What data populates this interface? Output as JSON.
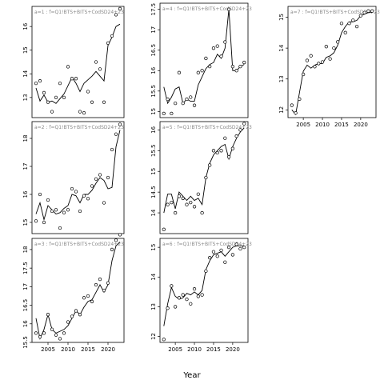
{
  "chart_data": {
    "type": "scatter",
    "xlabel": "Year",
    "panels": [
      {
        "label": "a=1  :  f=Q1!BTS+BITS+CodSD24+23",
        "xlim": [
          2001,
          2024
        ],
        "ylim": [
          12.15,
          16.85
        ],
        "yticks": [
          13,
          14,
          15,
          16
        ],
        "xticks": [],
        "x": [
          2002,
          2003,
          2004,
          2005,
          2006,
          2007,
          2008,
          2009,
          2010,
          2011,
          2012,
          2013,
          2014,
          2015,
          2016,
          2017,
          2018,
          2019,
          2020,
          2021,
          2022,
          2023
        ],
        "observed": [
          13.6,
          13.7,
          13.2,
          12.8,
          12.4,
          13.0,
          13.6,
          13.0,
          14.3,
          13.8,
          13.8,
          12.4,
          12.35,
          13.25,
          12.8,
          14.5,
          14.2,
          12.8,
          15.3,
          15.6,
          16.5,
          16.75
        ],
        "fitted": [
          13.4,
          12.85,
          13.1,
          12.8,
          12.85,
          12.75,
          12.95,
          13.15,
          13.5,
          13.85,
          13.6,
          13.25,
          13.6,
          13.75,
          13.9,
          14.1,
          13.9,
          13.7,
          15.2,
          15.55,
          16.0,
          16.1
        ]
      },
      {
        "label": "a=2  :  f=Q1!BTS+BITS+CodSD24+23",
        "xlim": [
          2001,
          2024
        ],
        "ylim": [
          14.6,
          18.6
        ],
        "yticks": [
          15,
          16,
          17,
          18
        ],
        "xticks": [],
        "x": [
          2002,
          2003,
          2004,
          2005,
          2006,
          2007,
          2008,
          2009,
          2010,
          2011,
          2012,
          2013,
          2014,
          2015,
          2016,
          2017,
          2018,
          2019,
          2020,
          2021,
          2022,
          2023
        ],
        "observed": [
          15.05,
          16.0,
          15.0,
          15.8,
          15.4,
          15.45,
          14.8,
          15.35,
          15.45,
          16.2,
          16.1,
          15.4,
          15.95,
          15.85,
          16.3,
          16.55,
          16.7,
          15.7,
          16.6,
          17.6,
          18.15,
          18.5
        ],
        "fitted": [
          15.3,
          15.7,
          15.1,
          15.6,
          15.45,
          15.3,
          15.35,
          15.5,
          15.6,
          16.0,
          15.95,
          15.7,
          16.0,
          16.0,
          16.15,
          16.4,
          16.6,
          16.5,
          16.2,
          16.25,
          17.7,
          18.3
        ]
      },
      {
        "label": "a=3  :  f=Q1!BTS+BITS+CodSD24+23",
        "xlim": [
          2001,
          2024
        ],
        "ylim": [
          15.5,
          18.3
        ],
        "yticks": [
          15.5,
          16.0,
          16.5,
          17.0,
          17.5,
          18.0
        ],
        "xticks": [
          2005,
          2010,
          2015,
          2020
        ],
        "x": [
          2002,
          2003,
          2004,
          2005,
          2006,
          2007,
          2008,
          2009,
          2010,
          2011,
          2012,
          2013,
          2014,
          2015,
          2016,
          2017,
          2018,
          2019,
          2020,
          2021,
          2022,
          2023
        ],
        "observed": [
          15.75,
          15.65,
          15.75,
          16.25,
          15.85,
          15.7,
          15.6,
          15.75,
          16.05,
          16.2,
          16.35,
          16.25,
          16.7,
          16.75,
          16.6,
          17.05,
          17.2,
          16.9,
          17.1,
          18.0,
          18.25,
          18.4
        ],
        "fitted": [
          16.15,
          15.6,
          15.85,
          16.25,
          15.85,
          15.75,
          15.8,
          15.85,
          15.95,
          16.15,
          16.35,
          16.25,
          16.45,
          16.6,
          16.65,
          16.85,
          17.05,
          16.85,
          17.05,
          17.7,
          18.1,
          18.2
        ]
      },
      {
        "label": "a=4  :  f=Q1!BTS+BITS+CodSD24+23",
        "xlim": [
          2001,
          2024
        ],
        "ylim": [
          14.85,
          17.65
        ],
        "yticks": [
          15.0,
          15.5,
          16.0,
          16.5,
          17.0,
          17.5
        ],
        "xticks": [],
        "x": [
          2002,
          2003,
          2004,
          2005,
          2006,
          2007,
          2008,
          2009,
          2010,
          2011,
          2012,
          2013,
          2014,
          2015,
          2016,
          2017,
          2018,
          2019,
          2020,
          2021,
          2022,
          2023
        ],
        "observed": [
          14.95,
          15.3,
          14.95,
          15.2,
          15.95,
          15.2,
          15.3,
          15.35,
          15.15,
          15.95,
          16.0,
          16.3,
          16.1,
          16.55,
          16.6,
          16.35,
          16.7,
          17.5,
          16.1,
          16.0,
          16.1,
          16.2
        ],
        "fitted": [
          15.6,
          15.2,
          15.35,
          15.55,
          15.6,
          15.2,
          15.3,
          15.25,
          15.25,
          15.65,
          15.85,
          16.05,
          16.15,
          16.2,
          16.4,
          16.3,
          16.55,
          17.5,
          16.0,
          16.0,
          16.1,
          16.15
        ]
      },
      {
        "label": "a=5  :  f=Q1!BTS+BITS+CodSD24+23",
        "xlim": [
          2001,
          2024
        ],
        "ylim": [
          13.5,
          16.2
        ],
        "yticks": [
          14.0,
          14.5,
          15.0,
          15.5,
          16.0
        ],
        "xticks": [],
        "x": [
          2002,
          2003,
          2004,
          2005,
          2006,
          2007,
          2008,
          2009,
          2010,
          2011,
          2012,
          2013,
          2014,
          2015,
          2016,
          2017,
          2018,
          2019,
          2020,
          2021,
          2022,
          2023
        ],
        "observed": [
          13.6,
          14.2,
          14.25,
          14.0,
          14.4,
          14.35,
          14.2,
          14.25,
          14.15,
          14.45,
          14.0,
          14.85,
          15.15,
          15.5,
          15.45,
          15.5,
          15.8,
          15.35,
          15.55,
          15.85,
          16.0,
          16.15
        ],
        "fitted": [
          14.0,
          14.45,
          14.45,
          14.1,
          14.5,
          14.4,
          14.3,
          14.4,
          14.3,
          14.35,
          14.2,
          14.85,
          15.2,
          15.4,
          15.5,
          15.6,
          15.65,
          15.3,
          15.6,
          15.8,
          15.95,
          16.05
        ]
      },
      {
        "label": "a=6  :  f=Q1!BTS+BITS+CodSD24+23",
        "xlim": [
          2001,
          2024
        ],
        "ylim": [
          11.8,
          15.3
        ],
        "yticks": [
          12.0,
          13.0,
          14.0,
          15.0
        ],
        "xticks": [
          2005,
          2010,
          2015,
          2020
        ],
        "x": [
          2002,
          2003,
          2004,
          2005,
          2006,
          2007,
          2008,
          2009,
          2010,
          2011,
          2012,
          2013,
          2014,
          2015,
          2016,
          2017,
          2018,
          2019,
          2020,
          2021,
          2022,
          2023
        ],
        "observed": [
          11.9,
          12.95,
          13.7,
          13.0,
          13.3,
          13.4,
          13.25,
          13.1,
          13.6,
          13.35,
          13.4,
          14.2,
          14.65,
          14.85,
          14.7,
          14.9,
          14.5,
          15.0,
          14.75,
          15.1,
          14.95,
          15.0
        ],
        "fitted": [
          12.35,
          13.1,
          13.65,
          13.35,
          13.25,
          13.3,
          13.45,
          13.4,
          13.5,
          13.4,
          13.55,
          14.25,
          14.55,
          14.75,
          14.8,
          14.85,
          14.7,
          14.85,
          15.0,
          15.05,
          15.05,
          15.05
        ]
      },
      {
        "label": "a=7  :  f=Q1!BTS+BITS+CodSD24+23",
        "xlim": [
          2001,
          2024
        ],
        "ylim": [
          11.75,
          15.35
        ],
        "yticks": [
          12.0,
          13.0,
          14.0,
          15.0
        ],
        "xticks": [
          2005,
          2010,
          2015,
          2020
        ],
        "x": [
          2002,
          2003,
          2004,
          2005,
          2006,
          2007,
          2008,
          2009,
          2010,
          2011,
          2012,
          2013,
          2014,
          2015,
          2016,
          2017,
          2018,
          2019,
          2020,
          2021,
          2022,
          2023
        ],
        "observed": [
          12.15,
          11.9,
          12.35,
          13.15,
          13.6,
          13.75,
          13.4,
          13.5,
          13.55,
          14.05,
          13.65,
          14.0,
          14.2,
          14.8,
          14.5,
          14.8,
          14.9,
          14.7,
          15.05,
          15.15,
          15.2,
          15.2
        ],
        "fitted": [
          12.0,
          11.85,
          12.55,
          13.25,
          13.45,
          13.35,
          13.45,
          13.5,
          13.5,
          13.7,
          13.75,
          13.85,
          14.1,
          14.5,
          14.7,
          14.85,
          14.85,
          14.9,
          15.05,
          15.1,
          15.15,
          15.15
        ]
      }
    ]
  }
}
